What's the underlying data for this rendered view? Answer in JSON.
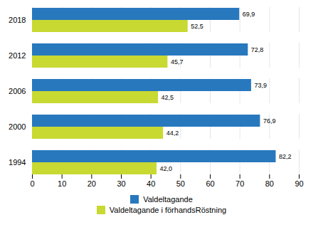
{
  "chart_data": {
    "type": "bar",
    "orientation": "horizontal",
    "categories": [
      "2018",
      "2012",
      "2006",
      "2000",
      "1994"
    ],
    "series": [
      {
        "name": "Valdeltagande",
        "color": "#2878be",
        "values": [
          69.9,
          72.8,
          73.9,
          76.9,
          82.2
        ],
        "value_labels": [
          "69,9",
          "72,8",
          "73,9",
          "76,9",
          "82,2"
        ]
      },
      {
        "name": "Valdeltagande i förhandsRöstning",
        "color": "#c8d932",
        "values": [
          52.5,
          45.7,
          42.5,
          44.2,
          42.0
        ],
        "value_labels": [
          "52,5",
          "45,7",
          "42,5",
          "44,2",
          "42,0"
        ]
      }
    ],
    "xlim": [
      0,
      90
    ],
    "xticks": [
      0,
      10,
      20,
      30,
      40,
      50,
      60,
      70,
      80,
      90
    ],
    "grid": true,
    "data_labels": true,
    "legend": "bottom"
  }
}
